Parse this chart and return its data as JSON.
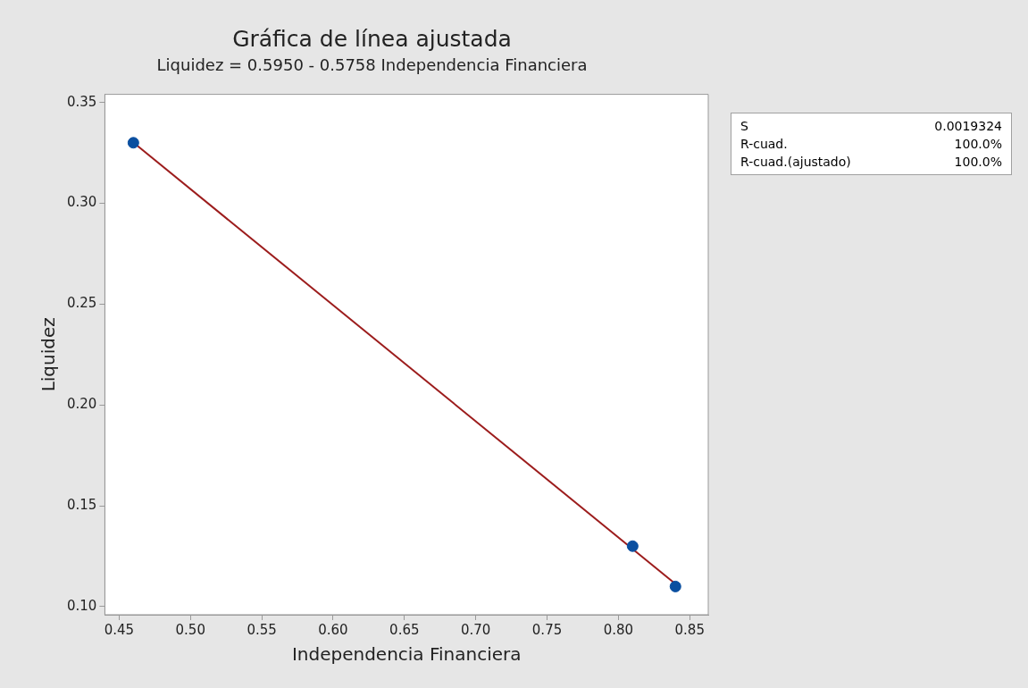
{
  "chart_data": {
    "type": "scatter",
    "title": "Gráfica de línea ajustada",
    "subtitle": "Liquidez = 0.5950 - 0.5758 Independencia Financiera",
    "xlabel": "Independencia Financiera",
    "ylabel": "Liquidez",
    "series": [
      {
        "type": "line",
        "x": [
          0.46,
          0.84
        ],
        "values": [
          0.3301,
          0.1113
        ],
        "color": "#9c1c1c",
        "marker": "none"
      },
      {
        "type": "scatter",
        "x": [
          0.46,
          0.81,
          0.84
        ],
        "values": [
          0.33,
          0.13,
          0.11
        ],
        "color": "#0a4fa0",
        "marker": "circle"
      }
    ],
    "xlim": [
      0.44,
      0.863
    ],
    "ylim": [
      0.096,
      0.354
    ],
    "xticks": [
      {
        "value": 0.45,
        "label": "0.45"
      },
      {
        "value": 0.5,
        "label": "0.50"
      },
      {
        "value": 0.55,
        "label": "0.55"
      },
      {
        "value": 0.6,
        "label": "0.60"
      },
      {
        "value": 0.65,
        "label": "0.65"
      },
      {
        "value": 0.7,
        "label": "0.70"
      },
      {
        "value": 0.75,
        "label": "0.75"
      },
      {
        "value": 0.8,
        "label": "0.80"
      },
      {
        "value": 0.85,
        "label": "0.85"
      }
    ],
    "yticks": [
      {
        "value": 0.1,
        "label": "0.10"
      },
      {
        "value": 0.15,
        "label": "0.15"
      },
      {
        "value": 0.2,
        "label": "0.20"
      },
      {
        "value": 0.25,
        "label": "0.25"
      },
      {
        "value": 0.3,
        "label": "0.30"
      },
      {
        "value": 0.35,
        "label": "0.35"
      }
    ],
    "annotations": [
      "S 0.0019324",
      "R-cuad. 100.0%",
      "R-cuad.(ajustado) 100.0%"
    ],
    "grid": false,
    "legend": false
  }
}
